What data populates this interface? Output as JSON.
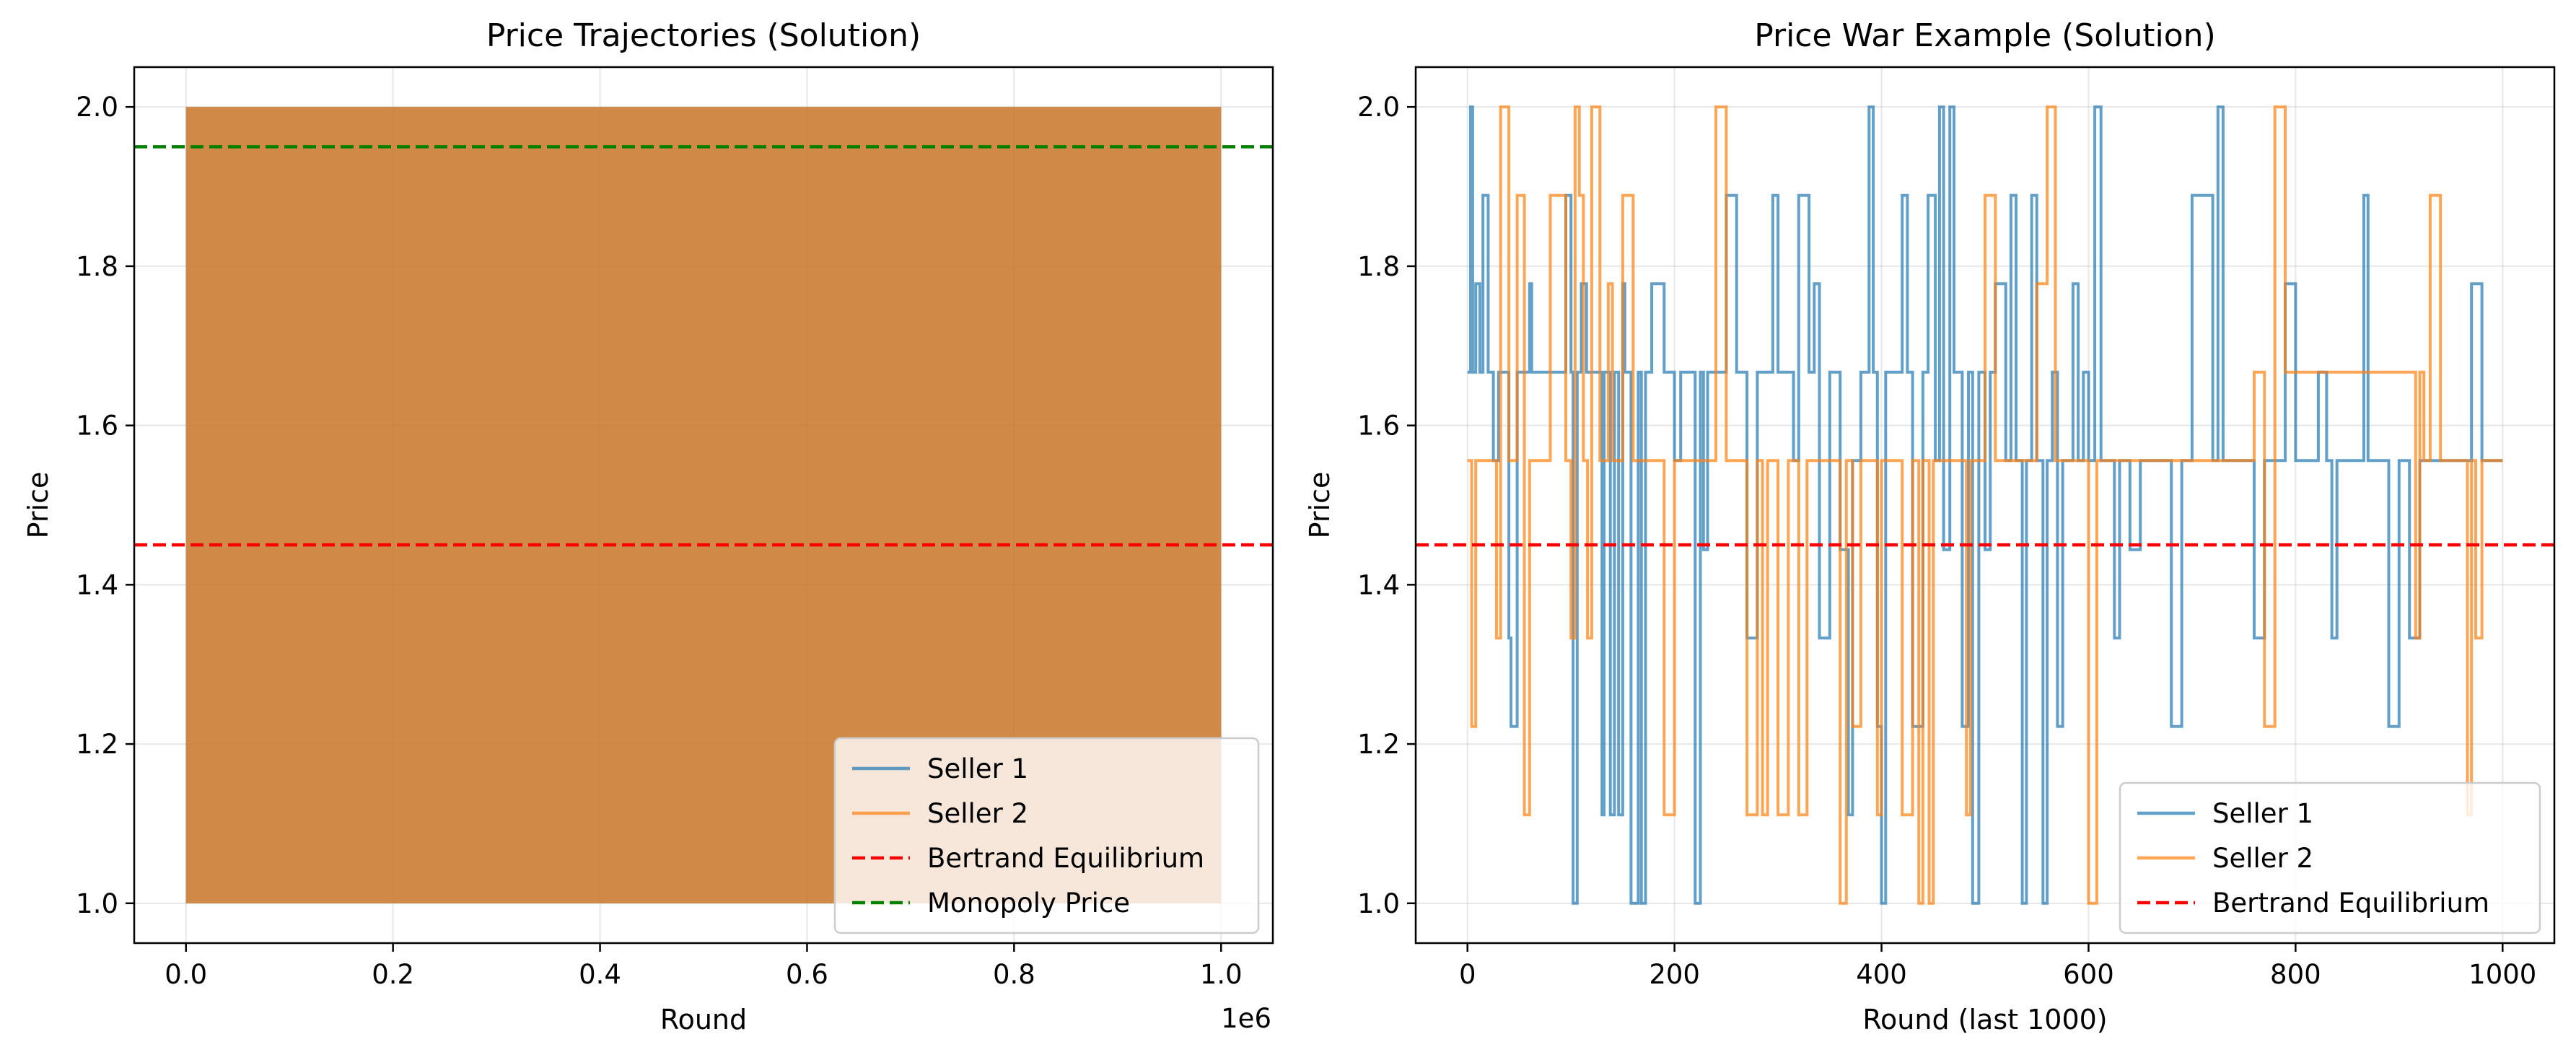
{
  "chart_data": [
    {
      "type": "line",
      "title": "Price Trajectories (Solution)",
      "xlabel": "Round",
      "ylabel": "Price",
      "x_offset_label": "1e6",
      "xlim": [
        -0.05,
        1.05
      ],
      "ylim": [
        0.95,
        2.05
      ],
      "xticks": [
        0.0,
        0.2,
        0.4,
        0.6,
        0.8,
        1.0
      ],
      "xtick_labels": [
        "0.0",
        "0.2",
        "0.4",
        "0.6",
        "0.8",
        "1.0"
      ],
      "yticks": [
        1.0,
        1.2,
        1.4,
        1.6,
        1.8,
        2.0
      ],
      "ytick_labels": [
        "1.0",
        "1.2",
        "1.4",
        "1.6",
        "1.8",
        "2.0"
      ],
      "grid": true,
      "legend_position": "lower right",
      "series": [
        {
          "name": "Seller 1",
          "color": "#1f77b4",
          "alpha": 0.7,
          "x_range": [
            0,
            1.0
          ],
          "y_range": [
            1.0,
            2.0
          ],
          "note_visible": "dense oscillation fills band"
        },
        {
          "name": "Seller 2",
          "color": "#ff7f0e",
          "alpha": 0.7,
          "x_range": [
            0,
            1.0
          ],
          "y_range": [
            1.0,
            2.0
          ]
        }
      ],
      "hlines": [
        {
          "name": "Bertrand Equilibrium",
          "y": 1.45,
          "color": "#ff0000",
          "style": "dashed"
        },
        {
          "name": "Monopoly Price",
          "y": 1.95,
          "color": "#008000",
          "style": "dashed"
        }
      ]
    },
    {
      "type": "line",
      "title": "Price War Example (Solution)",
      "xlabel": "Round (last 1000)",
      "ylabel": "Price",
      "xlim": [
        -50,
        1050
      ],
      "ylim": [
        0.95,
        2.05
      ],
      "xticks": [
        0,
        200,
        400,
        600,
        800,
        1000
      ],
      "xtick_labels": [
        "0",
        "200",
        "400",
        "600",
        "800",
        "1000"
      ],
      "yticks": [
        1.0,
        1.2,
        1.4,
        1.6,
        1.8,
        2.0
      ],
      "ytick_labels": [
        "1.0",
        "1.2",
        "1.4",
        "1.6",
        "1.8",
        "2.0"
      ],
      "grid": true,
      "legend_position": "lower right",
      "series": [
        {
          "name": "Seller 1",
          "color": "#1f77b4",
          "alpha": 0.7,
          "x": [
            0,
            3,
            5,
            8,
            12,
            15,
            20,
            25,
            30,
            40,
            42,
            48,
            60,
            62,
            70,
            90,
            95,
            100,
            102,
            106,
            110,
            115,
            130,
            132,
            138,
            142,
            146,
            150,
            152,
            158,
            165,
            168,
            172,
            178,
            190,
            200,
            206,
            212,
            220,
            225,
            228,
            232,
            240,
            250,
            260,
            270,
            280,
            295,
            300,
            310,
            315,
            320,
            330,
            335,
            340,
            350,
            360,
            368,
            372,
            380,
            388,
            392,
            396,
            400,
            404,
            410,
            420,
            425,
            430,
            440,
            445,
            452,
            456,
            460,
            466,
            470,
            478,
            484,
            488,
            494,
            500,
            505,
            510,
            520,
            525,
            530,
            536,
            540,
            545,
            550,
            556,
            560,
            565,
            570,
            575,
            585,
            590,
            595,
            600,
            606,
            612,
            620,
            625,
            630,
            640,
            650,
            660,
            670,
            680,
            690,
            700,
            720,
            725,
            730,
            740,
            760,
            770,
            780,
            790,
            800,
            820,
            822,
            830,
            835,
            840,
            850,
            855,
            860,
            866,
            870,
            890,
            900,
            910,
            920,
            924,
            928,
            932,
            940,
            950,
            960,
            970,
            980,
            990,
            995,
            1000
          ],
          "y": [
            1.667,
            2.0,
            1.667,
            1.778,
            1.667,
            1.889,
            1.667,
            1.556,
            1.667,
            1.333,
            1.222,
            1.667,
            1.778,
            1.667,
            1.667,
            1.667,
            1.889,
            1.667,
            1.0,
            1.667,
            1.778,
            1.667,
            1.111,
            1.667,
            1.111,
            1.667,
            1.111,
            1.778,
            1.667,
            1.0,
            1.667,
            1.0,
            1.667,
            1.778,
            1.667,
            1.556,
            1.667,
            1.667,
            1.0,
            1.667,
            1.444,
            1.667,
            1.667,
            1.889,
            1.667,
            1.333,
            1.667,
            1.889,
            1.667,
            1.667,
            1.556,
            1.889,
            1.667,
            1.778,
            1.333,
            1.667,
            1.444,
            1.111,
            1.556,
            1.667,
            2.0,
            1.667,
            1.222,
            1.0,
            1.667,
            1.667,
            1.889,
            1.667,
            1.222,
            1.667,
            1.889,
            1.556,
            2.0,
            1.444,
            2.0,
            1.667,
            1.222,
            1.667,
            1.0,
            1.667,
            1.444,
            1.667,
            1.778,
            1.556,
            1.889,
            1.556,
            1.0,
            1.556,
            1.889,
            1.556,
            1.0,
            1.556,
            1.667,
            1.222,
            1.556,
            1.778,
            1.556,
            1.667,
            1.556,
            2.0,
            1.556,
            1.556,
            1.333,
            1.556,
            1.444,
            1.556,
            1.556,
            1.556,
            1.222,
            1.556,
            1.889,
            1.556,
            2.0,
            1.556,
            1.556,
            1.333,
            1.556,
            1.556,
            1.778,
            1.556,
            1.556,
            1.667,
            1.556,
            1.333,
            1.556,
            1.556,
            1.556,
            1.556,
            1.889,
            1.556,
            1.222,
            1.556,
            1.333,
            1.556,
            1.556,
            1.556,
            1.556,
            1.556,
            1.556,
            1.556,
            1.778,
            1.556,
            1.556,
            1.556,
            1.556
          ]
        },
        {
          "name": "Seller 2",
          "color": "#ff7f0e",
          "alpha": 0.7,
          "x": [
            0,
            4,
            8,
            12,
            20,
            28,
            32,
            40,
            48,
            55,
            60,
            65,
            80,
            95,
            100,
            104,
            108,
            112,
            116,
            120,
            128,
            136,
            140,
            150,
            160,
            170,
            180,
            190,
            200,
            210,
            220,
            230,
            240,
            250,
            260,
            270,
            280,
            285,
            290,
            300,
            310,
            320,
            328,
            340,
            350,
            360,
            366,
            372,
            380,
            390,
            396,
            400,
            410,
            420,
            430,
            436,
            440,
            446,
            450,
            460,
            470,
            478,
            482,
            486,
            490,
            500,
            510,
            520,
            530,
            540,
            550,
            560,
            568,
            572,
            580,
            590,
            600,
            608,
            612,
            620,
            630,
            640,
            650,
            660,
            670,
            680,
            690,
            700,
            710,
            720,
            730,
            740,
            750,
            760,
            770,
            780,
            790,
            800,
            810,
            820,
            830,
            840,
            850,
            860,
            870,
            880,
            900,
            910,
            916,
            920,
            924,
            930,
            940,
            950,
            956,
            960,
            966,
            970,
            974,
            980,
            990,
            1000
          ],
          "y": [
            1.556,
            1.222,
            1.556,
            1.556,
            1.556,
            1.333,
            2.0,
            1.556,
            1.889,
            1.111,
            1.556,
            1.556,
            1.889,
            1.556,
            1.333,
            2.0,
            1.889,
            1.556,
            1.333,
            2.0,
            1.556,
            1.778,
            1.556,
            1.889,
            1.556,
            1.556,
            1.556,
            1.111,
            1.556,
            1.556,
            1.556,
            1.556,
            2.0,
            1.556,
            1.556,
            1.111,
            1.556,
            1.111,
            1.556,
            1.111,
            1.556,
            1.111,
            1.556,
            1.556,
            1.556,
            1.0,
            1.556,
            1.222,
            1.556,
            1.556,
            1.111,
            1.556,
            1.556,
            1.111,
            1.556,
            1.0,
            1.556,
            1.0,
            1.556,
            1.556,
            1.556,
            1.556,
            1.111,
            1.556,
            1.556,
            1.889,
            1.556,
            1.556,
            1.556,
            1.556,
            1.778,
            2.0,
            1.556,
            1.556,
            1.556,
            1.556,
            1.0,
            1.556,
            1.556,
            1.556,
            1.556,
            1.556,
            1.556,
            1.556,
            1.556,
            1.556,
            1.556,
            1.556,
            1.556,
            1.556,
            1.556,
            1.556,
            1.556,
            1.667,
            1.222,
            2.0,
            1.667,
            1.667,
            1.667,
            1.667,
            1.667,
            1.667,
            1.667,
            1.667,
            1.667,
            1.667,
            1.667,
            1.667,
            1.333,
            1.667,
            1.556,
            1.889,
            1.556,
            1.556,
            1.556,
            1.556,
            1.111,
            1.556,
            1.333,
            1.556,
            1.556,
            1.556
          ]
        }
      ],
      "hlines": [
        {
          "name": "Bertrand Equilibrium",
          "y": 1.45,
          "color": "#ff0000",
          "style": "dashed"
        }
      ]
    }
  ]
}
